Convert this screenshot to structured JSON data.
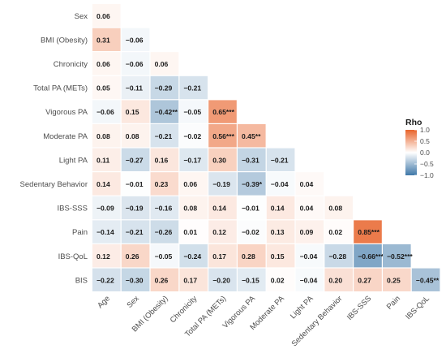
{
  "chart_data": {
    "type": "heatmap",
    "title": "",
    "xlabel": "",
    "ylabel": "",
    "rows": [
      "Sex",
      "BMI (Obesity)",
      "Chronicity",
      "Total PA (METs)",
      "Vigorous PA",
      "Moderate PA",
      "Light PA",
      "Sedentary Behavior",
      "IBS-SSS",
      "Pain",
      "IBS-QoL",
      "BIS"
    ],
    "columns": [
      "Age",
      "Sex",
      "BMI (Obesity)",
      "Chronicity",
      "Total PA (METs)",
      "Vigorous PA",
      "Moderate PA",
      "Light PA",
      "Sedentary Behavior",
      "IBS-SSS",
      "Pain",
      "IBS-QoL"
    ],
    "values": [
      [
        0.06
      ],
      [
        0.31,
        -0.06
      ],
      [
        0.06,
        -0.06,
        0.06
      ],
      [
        0.05,
        -0.11,
        -0.29,
        -0.21
      ],
      [
        -0.06,
        0.15,
        -0.42,
        -0.05,
        0.65
      ],
      [
        0.08,
        0.08,
        -0.21,
        -0.02,
        0.56,
        0.45
      ],
      [
        0.11,
        -0.27,
        0.16,
        -0.17,
        0.3,
        -0.31,
        -0.21
      ],
      [
        0.14,
        -0.01,
        0.23,
        0.06,
        -0.19,
        -0.39,
        -0.04,
        0.04
      ],
      [
        -0.09,
        -0.19,
        -0.16,
        0.08,
        0.14,
        -0.01,
        0.14,
        0.04,
        0.08
      ],
      [
        -0.14,
        -0.21,
        -0.26,
        0.01,
        0.12,
        -0.02,
        0.13,
        0.09,
        0.02,
        0.85
      ],
      [
        0.12,
        0.26,
        -0.05,
        -0.24,
        0.17,
        0.28,
        0.15,
        -0.04,
        -0.28,
        -0.66,
        -0.52
      ],
      [
        -0.22,
        -0.3,
        0.26,
        0.17,
        -0.2,
        -0.15,
        0.02,
        -0.04,
        0.2,
        0.27,
        0.25,
        -0.45
      ]
    ],
    "labels": [
      [
        "0.06"
      ],
      [
        "0.31",
        "−0.06"
      ],
      [
        "0.06",
        "−0.06",
        "0.06"
      ],
      [
        "0.05",
        "−0.11",
        "−0.29",
        "−0.21"
      ],
      [
        "−0.06",
        "0.15",
        "−0.42**",
        "−0.05",
        "0.65***"
      ],
      [
        "0.08",
        "0.08",
        "−0.21",
        "−0.02",
        "0.56***",
        "0.45**"
      ],
      [
        "0.11",
        "−0.27",
        "0.16",
        "−0.17",
        "0.30",
        "−0.31",
        "−0.21"
      ],
      [
        "0.14",
        "−0.01",
        "0.23",
        "0.06",
        "−0.19",
        "−0.39*",
        "−0.04",
        "0.04"
      ],
      [
        "−0.09",
        "−0.19",
        "−0.16",
        "0.08",
        "0.14",
        "−0.01",
        "0.14",
        "0.04",
        "0.08"
      ],
      [
        "−0.14",
        "−0.21",
        "−0.26",
        "0.01",
        "0.12",
        "−0.02",
        "0.13",
        "0.09",
        "0.02",
        "0.85***"
      ],
      [
        "0.12",
        "0.26",
        "−0.05",
        "−0.24",
        "0.17",
        "0.28",
        "0.15",
        "−0.04",
        "−0.28",
        "−0.66***",
        "−0.52***"
      ],
      [
        "−0.22",
        "−0.30",
        "0.26",
        "0.17",
        "−0.20",
        "−0.15",
        "0.02",
        "−0.04",
        "0.20",
        "0.27",
        "0.25",
        "−0.45**"
      ]
    ],
    "legend": {
      "title": "Rho",
      "ticks": [
        "1.0",
        "0.5",
        "0.0",
        "−0.5",
        "−1.0"
      ],
      "tick_values": [
        1.0,
        0.5,
        0.0,
        -0.5,
        -1.0
      ],
      "range": [
        -1.0,
        1.0
      ],
      "placement": "right"
    },
    "colors": {
      "positive": "#e8642b",
      "zero": "#ffffff",
      "negative": "#3f78a8",
      "diagonal_background": "#ffffff"
    }
  }
}
